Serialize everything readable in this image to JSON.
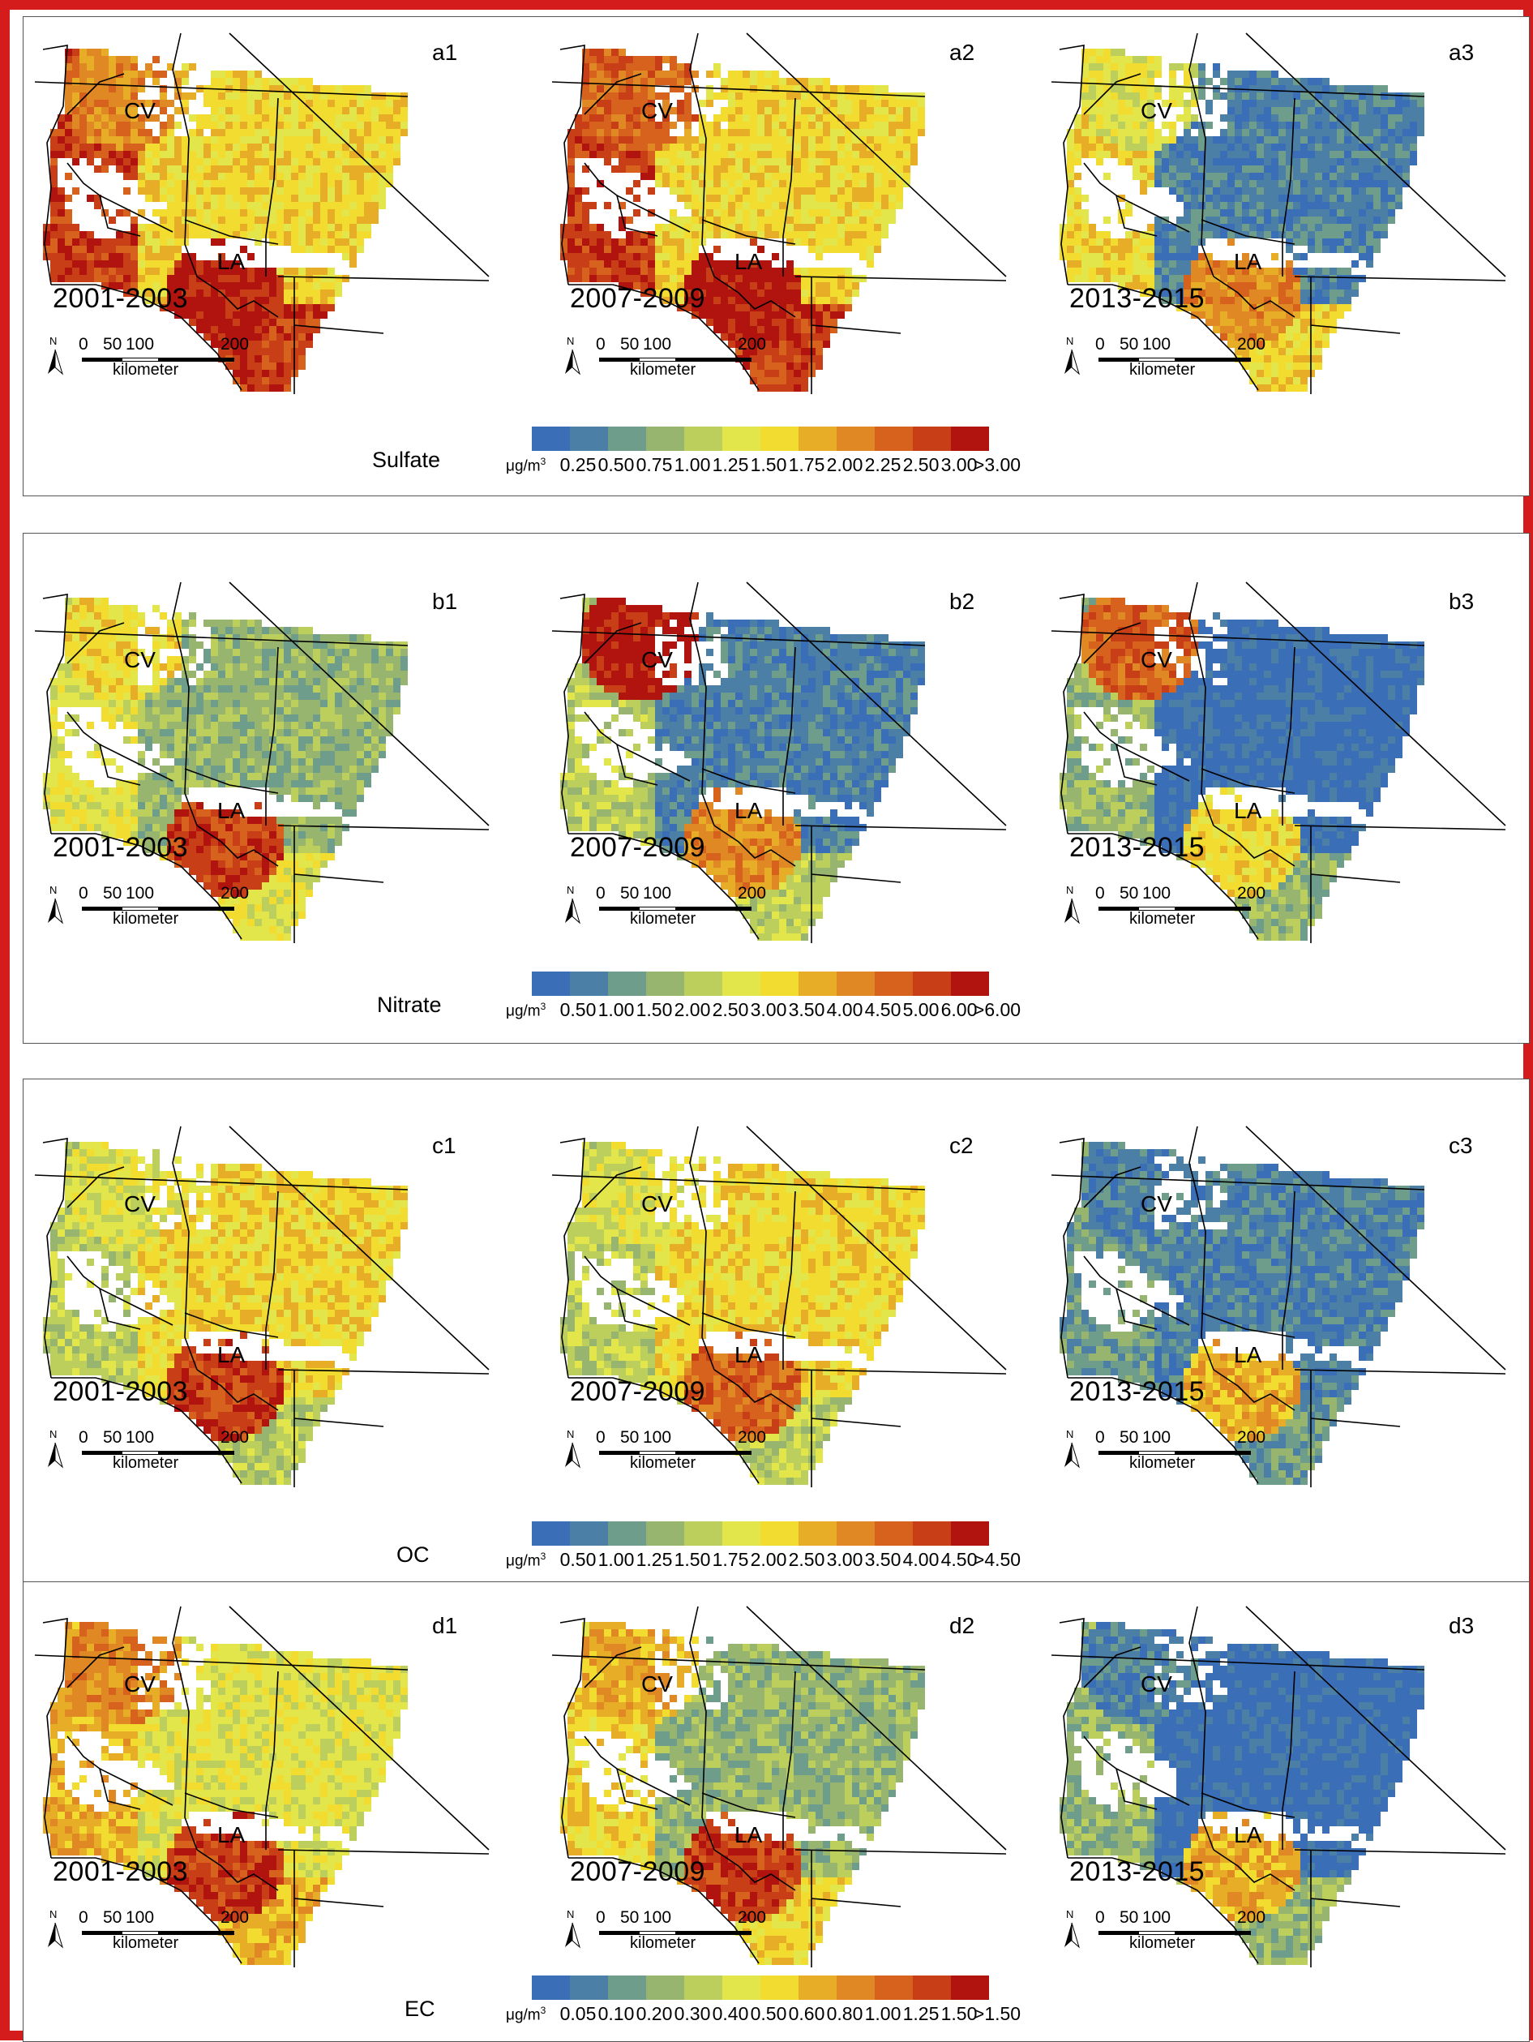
{
  "colors": {
    "frame": "#d41c1c",
    "scale": [
      "#3a6fb7",
      "#4b7fa6",
      "#6f9d8c",
      "#98b56f",
      "#bccf5c",
      "#e2e64a",
      "#f2dc2f",
      "#e8ad27",
      "#e08823",
      "#d6621d",
      "#c83e17",
      "#b1130f"
    ]
  },
  "rows": [
    {
      "id": "a",
      "variable": "Sulfate",
      "unit_base": "μg/m",
      "unit_exp": "3",
      "breaks": [
        "0.25",
        "0.50",
        "0.75",
        "1.00",
        "1.25",
        "1.50",
        "1.75",
        "2.00",
        "2.25",
        "2.50",
        "3.00",
        ">3.00"
      ],
      "panels": [
        {
          "letter": "a1",
          "period": "2001-2003",
          "city_cv": "CV",
          "city_la": "LA"
        },
        {
          "letter": "a2",
          "period": "2007-2009",
          "city_cv": "CV",
          "city_la": "LA"
        },
        {
          "letter": "a3",
          "period": "2013-2015",
          "city_cv": "CV",
          "city_la": "LA"
        }
      ]
    },
    {
      "id": "b",
      "variable": "Nitrate",
      "unit_base": "μg/m",
      "unit_exp": "3",
      "breaks": [
        "0.50",
        "1.00",
        "1.50",
        "2.00",
        "2.50",
        "3.00",
        "3.50",
        "4.00",
        "4.50",
        "5.00",
        "6.00",
        ">6.00"
      ],
      "panels": [
        {
          "letter": "b1",
          "period": "2001-2003",
          "city_cv": "CV",
          "city_la": "LA"
        },
        {
          "letter": "b2",
          "period": "2007-2009",
          "city_cv": "CV",
          "city_la": "LA"
        },
        {
          "letter": "b3",
          "period": "2013-2015",
          "city_cv": "CV",
          "city_la": "LA"
        }
      ]
    },
    {
      "id": "c",
      "variable": "OC",
      "unit_base": "μg/m",
      "unit_exp": "3",
      "breaks": [
        "0.50",
        "1.00",
        "1.25",
        "1.50",
        "1.75",
        "2.00",
        "2.50",
        "3.00",
        "3.50",
        "4.00",
        "4.50",
        ">4.50"
      ],
      "panels": [
        {
          "letter": "c1",
          "period": "2001-2003",
          "city_cv": "CV",
          "city_la": "LA"
        },
        {
          "letter": "c2",
          "period": "2007-2009",
          "city_cv": "CV",
          "city_la": "LA"
        },
        {
          "letter": "c3",
          "period": "2013-2015",
          "city_cv": "CV",
          "city_la": "LA"
        }
      ]
    },
    {
      "id": "d",
      "variable": "EC",
      "unit_base": "μg/m",
      "unit_exp": "3",
      "breaks": [
        "0.05",
        "0.10",
        "0.20",
        "0.30",
        "0.40",
        "0.50",
        "0.60",
        "0.80",
        "1.00",
        "1.25",
        "1.50",
        ">1.50"
      ],
      "panels": [
        {
          "letter": "d1",
          "period": "2001-2003",
          "city_cv": "CV",
          "city_la": "LA"
        },
        {
          "letter": "d2",
          "period": "2007-2009",
          "city_cv": "CV",
          "city_la": "LA"
        },
        {
          "letter": "d3",
          "period": "2013-2015",
          "city_cv": "CV",
          "city_la": "LA"
        }
      ]
    }
  ],
  "scalebar": {
    "north": "N",
    "ticks": [
      "0",
      "50",
      "100",
      "200"
    ],
    "unit": "kilometer"
  }
}
